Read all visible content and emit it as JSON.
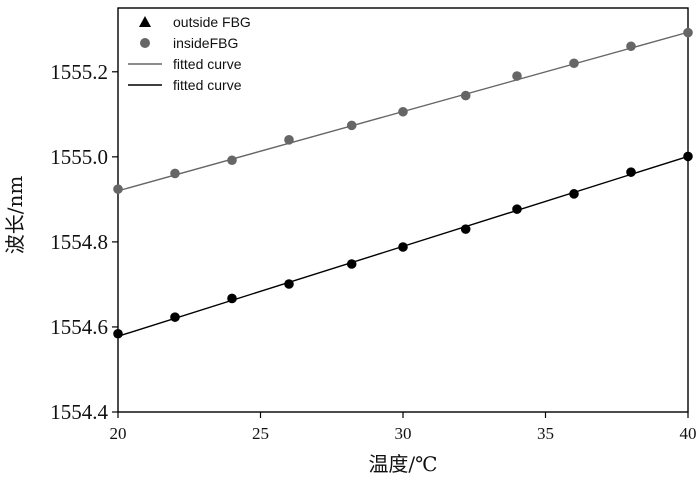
{
  "chart_data": {
    "type": "scatter",
    "xlabel": "温度/℃",
    "ylabel": "波长/nm",
    "xlim": [
      20,
      40
    ],
    "ylim": [
      1554.4,
      1555.35
    ],
    "xticks": [
      20,
      25,
      30,
      35,
      40
    ],
    "yticks": [
      1554.4,
      1554.6,
      1554.8,
      1555.0,
      1555.2
    ],
    "xtick_labels": [
      "20",
      "25",
      "30",
      "35",
      "40"
    ],
    "ytick_labels": [
      "1554.4",
      "1554.6",
      "1554.8",
      "1555.0",
      "1555.2"
    ],
    "grid": false,
    "legend_position": "top-left",
    "legend": [
      {
        "label": "outside FBG",
        "kind": "marker-triangle",
        "color": "#000000"
      },
      {
        "label": "insideFBG",
        "kind": "marker-circle",
        "color": "#666666"
      },
      {
        "label": "fitted curve",
        "kind": "line",
        "color": "#666666"
      },
      {
        "label": "fitted curve",
        "kind": "line",
        "color": "#000000"
      }
    ],
    "series": [
      {
        "label": "insideFBG",
        "color": "#666666",
        "x": [
          20,
          22,
          24,
          26,
          28.2,
          30,
          32.2,
          34,
          36,
          38,
          40
        ],
        "y": [
          1554.924,
          1554.961,
          1554.992,
          1555.04,
          1555.074,
          1555.106,
          1555.144,
          1555.19,
          1555.22,
          1555.26,
          1555.292
        ],
        "fit": [
          1554.92,
          1555.293
        ]
      },
      {
        "label": "outside FBG",
        "color": "#000000",
        "x": [
          20,
          22,
          24,
          26,
          28.2,
          30,
          32.2,
          34,
          36,
          38,
          40
        ],
        "y": [
          1554.584,
          1554.623,
          1554.667,
          1554.701,
          1554.748,
          1554.788,
          1554.83,
          1554.877,
          1554.913,
          1554.964,
          1555.001
        ],
        "fit": [
          1554.578,
          1555.001
        ]
      }
    ]
  }
}
